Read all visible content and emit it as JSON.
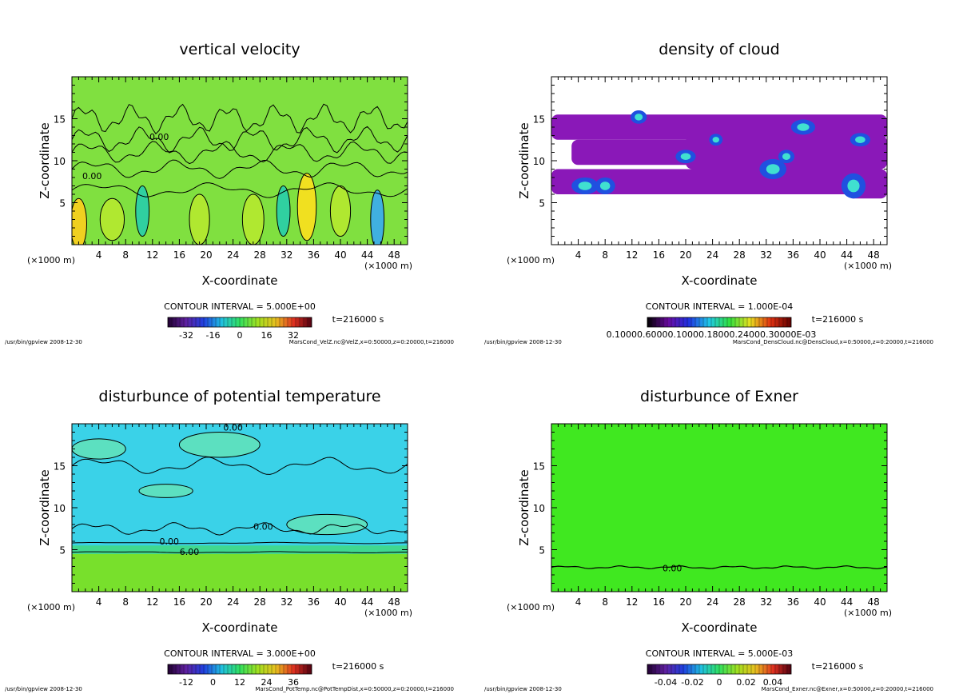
{
  "chart_data": [
    {
      "type": "heatmap",
      "title": "vertical velocity",
      "xlabel": "X-coordinate",
      "ylabel": "Z-coordinate",
      "x_unit": "(×1000 m)",
      "x_ticks": [
        4,
        8,
        12,
        16,
        20,
        24,
        28,
        32,
        36,
        40,
        44,
        48
      ],
      "y_ticks": [
        5,
        10,
        15
      ],
      "xlim": [
        0,
        50
      ],
      "ylim": [
        0,
        20
      ],
      "contour_interval": "CONTOUR INTERVAL = 5.000E+00",
      "time": "t=216000 s",
      "colorbar_ticks": [
        "-32",
        "-16",
        "0",
        "16",
        "32"
      ],
      "contour_labels": [
        "0.00"
      ],
      "footer_left": "/usr/bin/gpview  2008-12-30",
      "footer_right": "MarsCond_VelZ.nc@VelZ,x=0:50000,z=0:20000,t=216000",
      "fill": "#80e040"
    },
    {
      "type": "heatmap",
      "title": "density of cloud",
      "xlabel": "X-coordinate",
      "ylabel": "Z-coordinate",
      "x_unit": "(×1000 m)",
      "x_ticks": [
        4,
        8,
        12,
        16,
        20,
        24,
        28,
        32,
        36,
        40,
        44,
        48
      ],
      "y_ticks": [
        5,
        10,
        15
      ],
      "xlim": [
        0,
        50
      ],
      "ylim": [
        0,
        20
      ],
      "contour_interval": "CONTOUR INTERVAL = 1.000E-04",
      "time": "t=216000 s",
      "colorbar_label": "0.10000.60000.10000.18000.24000.30000E-03",
      "footer_left": "/usr/bin/gpview  2008-12-30",
      "footer_right": "MarsCond_DensCloud.nc@DensCloud,x=0:50000,z=0:20000,t=216000",
      "fill": "#8a18b8"
    },
    {
      "type": "heatmap",
      "title": "disturbunce of potential temperature",
      "xlabel": "X-coordinate",
      "ylabel": "Z-coordinate",
      "x_unit": "(×1000 m)",
      "x_ticks": [
        4,
        8,
        12,
        16,
        20,
        24,
        28,
        32,
        36,
        40,
        44,
        48
      ],
      "y_ticks": [
        5,
        10,
        15
      ],
      "xlim": [
        0,
        50
      ],
      "ylim": [
        0,
        20
      ],
      "contour_interval": "CONTOUR INTERVAL = 3.000E+00",
      "time": "t=216000 s",
      "colorbar_ticks": [
        "-12",
        "0",
        "12",
        "24",
        "36"
      ],
      "contour_labels": [
        "0.00",
        "6.00"
      ],
      "footer_left": "/usr/bin/gpview  2008-12-30",
      "footer_right": "MarsCond_PotTemp.nc@PotTempDist,x=0:50000,z=0:20000,t=216000",
      "fill": "#3ad2e8"
    },
    {
      "type": "heatmap",
      "title": "disturbunce of Exner",
      "xlabel": "X-coordinate",
      "ylabel": "Z-coordinate",
      "x_unit": "(×1000 m)",
      "x_ticks": [
        4,
        8,
        12,
        16,
        20,
        24,
        28,
        32,
        36,
        40,
        44,
        48
      ],
      "y_ticks": [
        5,
        10,
        15
      ],
      "xlim": [
        0,
        50
      ],
      "ylim": [
        0,
        20
      ],
      "contour_interval": "CONTOUR INTERVAL = 5.000E-03",
      "time": "t=216000 s",
      "colorbar_ticks": [
        "-0.04",
        "-0.02",
        "0",
        "0.02",
        "0.04"
      ],
      "contour_labels": [
        "0.00"
      ],
      "footer_left": "/usr/bin/gpview  2008-12-30",
      "footer_right": "MarsCond_Exner.nc@Exner,x=0:50000,z=0:20000,t=216000",
      "fill": "#40e820"
    }
  ]
}
